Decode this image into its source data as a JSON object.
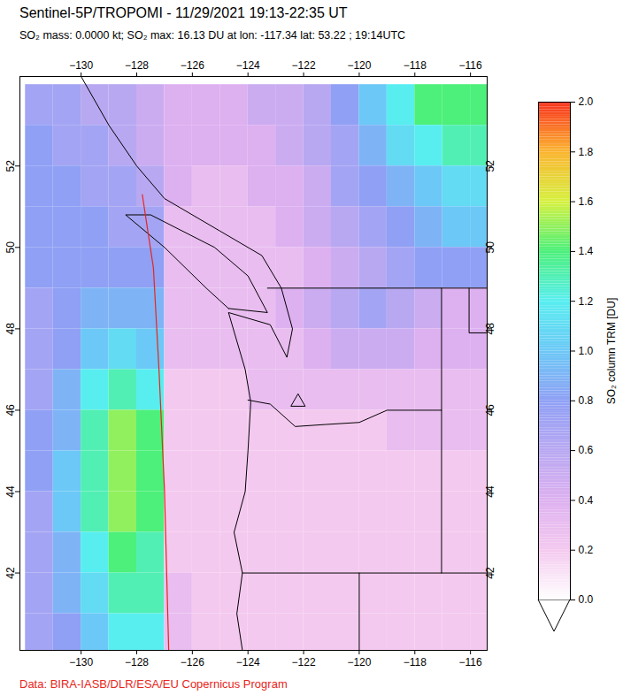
{
  "chart_data": {
    "type": "heatmap",
    "title": "Sentinel-5P/TROPOMI - 11/29/2021 19:13-22:35 UT",
    "subtitle": "SO₂ mass: 0.0000 kt; SO₂ max: 16.13 DU at lon: -117.34 lat: 53.22 ; 19:14UTC",
    "caption": "Data: BIRA-IASB/DLR/ESA/EU Copernicus Program",
    "xlim": [
      -132.2,
      -115.4
    ],
    "ylim": [
      40.1,
      54.2
    ],
    "xticks": [
      -130,
      -128,
      -126,
      -124,
      -122,
      -120,
      -118,
      -116
    ],
    "yticks": [
      42,
      44,
      46,
      48,
      50,
      52
    ],
    "cells": {
      "lon": [
        -131.5,
        -130.5,
        -129.5,
        -128.5,
        -127.5,
        -126.5,
        -125.5,
        -124.5,
        -123.5,
        -122.5,
        -121.5,
        -120.5,
        -119.5,
        -118.5,
        -117.5,
        -116.5,
        -115.5
      ],
      "lat": [
        53.5,
        52.5,
        51.5,
        50.5,
        49.5,
        48.5,
        47.5,
        46.5,
        45.5,
        44.5,
        43.5,
        42.5,
        41.5,
        40.5
      ],
      "values": [
        [
          0.7,
          0.7,
          0.6,
          0.6,
          0.5,
          0.4,
          0.4,
          0.4,
          0.5,
          0.5,
          0.6,
          0.8,
          1.0,
          1.2,
          1.4,
          1.4,
          1.4
        ],
        [
          0.8,
          0.7,
          0.7,
          0.6,
          0.5,
          0.4,
          0.4,
          0.4,
          0.4,
          0.5,
          0.6,
          0.7,
          0.9,
          1.1,
          1.2,
          1.3,
          1.3
        ],
        [
          0.8,
          0.8,
          0.7,
          0.7,
          0.6,
          0.4,
          0.3,
          0.3,
          0.4,
          0.4,
          0.5,
          0.7,
          0.8,
          0.9,
          1.0,
          1.1,
          1.1
        ],
        [
          0.8,
          0.8,
          0.8,
          0.7,
          0.7,
          0.3,
          0.3,
          0.3,
          0.3,
          0.4,
          0.5,
          0.6,
          0.7,
          0.8,
          0.9,
          1.0,
          1.0
        ],
        [
          0.8,
          0.8,
          0.8,
          0.8,
          0.8,
          0.3,
          0.3,
          0.3,
          0.3,
          0.3,
          0.4,
          0.5,
          0.6,
          0.7,
          0.8,
          0.8,
          0.8
        ],
        [
          0.7,
          0.8,
          0.9,
          0.9,
          0.9,
          0.3,
          0.3,
          0.3,
          0.3,
          0.4,
          0.5,
          0.6,
          0.7,
          0.6,
          0.5,
          0.4,
          0.4
        ],
        [
          0.7,
          0.8,
          1.0,
          1.1,
          1.0,
          0.3,
          0.3,
          0.3,
          0.3,
          0.3,
          0.4,
          0.5,
          0.5,
          0.5,
          0.4,
          0.4,
          0.4
        ],
        [
          0.7,
          0.9,
          1.2,
          1.3,
          1.2,
          0.2,
          0.2,
          0.2,
          0.3,
          0.3,
          0.3,
          0.3,
          0.3,
          0.3,
          0.3,
          0.3,
          0.3
        ],
        [
          0.8,
          0.9,
          1.3,
          1.5,
          1.4,
          0.2,
          0.2,
          0.2,
          0.2,
          0.2,
          0.2,
          0.2,
          0.2,
          0.3,
          0.3,
          0.3,
          0.3
        ],
        [
          0.8,
          1.0,
          1.3,
          1.5,
          1.4,
          0.2,
          0.2,
          0.2,
          0.2,
          0.2,
          0.2,
          0.2,
          0.2,
          0.2,
          0.2,
          0.2,
          0.2
        ],
        [
          0.7,
          1.0,
          1.3,
          1.5,
          1.4,
          0.2,
          0.2,
          0.2,
          0.2,
          0.2,
          0.2,
          0.2,
          0.2,
          0.2,
          0.2,
          0.2,
          0.2
        ],
        [
          0.7,
          0.9,
          1.2,
          1.4,
          1.3,
          0.2,
          0.2,
          0.2,
          0.2,
          0.2,
          0.2,
          0.2,
          0.2,
          0.2,
          0.2,
          0.2,
          0.2
        ],
        [
          0.7,
          0.9,
          1.1,
          1.3,
          1.3,
          0.3,
          0.2,
          0.2,
          0.2,
          0.2,
          0.2,
          0.2,
          0.2,
          0.2,
          0.2,
          0.2,
          0.2
        ],
        [
          0.7,
          0.8,
          1.0,
          1.2,
          1.2,
          0.3,
          0.2,
          0.2,
          0.2,
          0.2,
          0.2,
          0.2,
          0.2,
          0.2,
          0.2,
          0.2,
          0.2
        ]
      ]
    },
    "colorbar": {
      "label": "SO₂ column TRM [DU]",
      "range": [
        0,
        2
      ],
      "ticks": [
        {
          "value": 0,
          "label": "0.0"
        },
        {
          "value": 0.2,
          "label": "0.2"
        },
        {
          "value": 0.4,
          "label": "0.4"
        },
        {
          "value": 0.6,
          "label": "0.6"
        },
        {
          "value": 0.8,
          "label": "0.8"
        },
        {
          "value": 1,
          "label": "1.0"
        },
        {
          "value": 1.2,
          "label": "1.2"
        },
        {
          "value": 1.4,
          "label": "1.4"
        },
        {
          "value": 1.6,
          "label": "1.6"
        },
        {
          "value": 1.8,
          "label": "1.8"
        },
        {
          "value": 2,
          "label": "2.0"
        }
      ]
    },
    "volcano": {
      "lon": -122.2,
      "lat": 46.2
    },
    "swath_edge": [
      [
        -127.8,
        51.3
      ],
      [
        -127.4,
        49.5
      ],
      [
        -127.2,
        47.0
      ],
      [
        -127.0,
        44.0
      ],
      [
        -126.85,
        40.1
      ]
    ],
    "outlines": [
      [
        [
          -124.2,
          40.1
        ],
        [
          -124.4,
          41.0
        ],
        [
          -124.2,
          42.0
        ],
        [
          -124.5,
          43.0
        ],
        [
          -124.1,
          44.0
        ],
        [
          -124.0,
          45.0
        ],
        [
          -123.9,
          46.2
        ],
        [
          -124.1,
          47.0
        ],
        [
          -124.7,
          48.4
        ],
        [
          -123.2,
          48.1
        ],
        [
          -122.6,
          47.3
        ],
        [
          -122.4,
          48.0
        ],
        [
          -122.8,
          49.0
        ],
        [
          -123.5,
          49.8
        ],
        [
          -125.0,
          50.4
        ],
        [
          -127.0,
          51.2
        ],
        [
          -128.0,
          52.0
        ],
        [
          -129.0,
          53.0
        ],
        [
          -130.0,
          54.2
        ]
      ],
      [
        [
          -124.7,
          48.5
        ],
        [
          -123.3,
          48.4
        ],
        [
          -124.0,
          49.3
        ],
        [
          -125.2,
          50.0
        ],
        [
          -127.5,
          50.8
        ],
        [
          -128.4,
          50.8
        ],
        [
          -127.0,
          50.0
        ],
        [
          -125.5,
          49.0
        ],
        [
          -124.7,
          48.5
        ]
      ],
      [
        [
          -123.3,
          49.0
        ],
        [
          -115.4,
          49.0
        ]
      ],
      [
        [
          -117.04,
          49.0
        ],
        [
          -117.04,
          42.0
        ]
      ],
      [
        [
          -124.0,
          46.25
        ],
        [
          -123.2,
          46.15
        ],
        [
          -122.3,
          45.6
        ],
        [
          -121.2,
          45.65
        ],
        [
          -120.0,
          45.7
        ],
        [
          -119.0,
          46.0
        ],
        [
          -117.04,
          46.0
        ]
      ],
      [
        [
          -124.2,
          42.0
        ],
        [
          -115.4,
          42.0
        ]
      ],
      [
        [
          -120.0,
          42.0
        ],
        [
          -120.0,
          40.1
        ]
      ],
      [
        [
          -116.05,
          49.0
        ],
        [
          -116.05,
          47.9
        ],
        [
          -115.4,
          47.9
        ]
      ]
    ]
  }
}
